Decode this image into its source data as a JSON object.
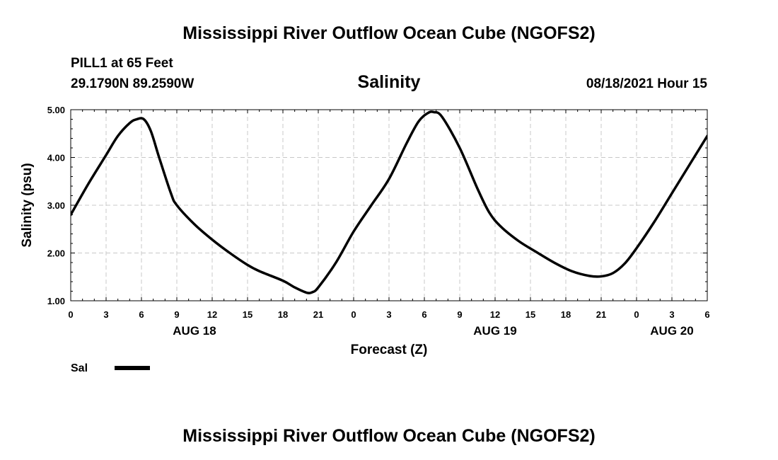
{
  "header": {
    "title": "Mississippi River Outflow Ocean Cube (NGOFS2)",
    "station": "PILL1 at 65 Feet",
    "coords": "29.1790N  89.2590W",
    "variable": "Salinity",
    "run": "08/18/2021 Hour 15"
  },
  "footer": {
    "title": "Mississippi River Outflow Ocean Cube (NGOFS2)"
  },
  "chart_data": {
    "type": "line",
    "ylabel": "Salinity (psu)",
    "xlabel": "Forecast (Z)",
    "ylim": [
      1.0,
      5.0
    ],
    "yticks": [
      1.0,
      2.0,
      3.0,
      4.0,
      5.0
    ],
    "ytick_labels": [
      "1.00",
      "2.00",
      "3.00",
      "4.00",
      "5.00"
    ],
    "xlim": [
      0,
      54
    ],
    "xticks": [
      0,
      3,
      6,
      9,
      12,
      15,
      18,
      21,
      24,
      27,
      30,
      33,
      36,
      39,
      42,
      45,
      48,
      51,
      54
    ],
    "xtick_labels": [
      "0",
      "3",
      "6",
      "9",
      "12",
      "15",
      "18",
      "21",
      "0",
      "3",
      "6",
      "9",
      "12",
      "15",
      "18",
      "21",
      "0",
      "3",
      "6"
    ],
    "date_labels": [
      {
        "label": "AUG 18",
        "x": 10.5
      },
      {
        "label": "AUG 19",
        "x": 36
      },
      {
        "label": "AUG 20",
        "x": 51
      }
    ],
    "grid": true,
    "legend": {
      "position": "bottom-left",
      "entries": [
        {
          "label": "Sal",
          "color": "#000000"
        }
      ]
    },
    "series": [
      {
        "name": "Sal",
        "color": "#000000",
        "x": [
          0,
          1.5,
          3,
          4,
          5,
          5.6,
          6.2,
          6.8,
          7.5,
          8.5,
          9,
          10.5,
          12,
          13.5,
          15,
          16,
          18,
          19,
          20,
          20.5,
          21,
          22.5,
          24,
          25.5,
          27,
          28.5,
          29.5,
          30.3,
          30.8,
          31.5,
          33,
          34.5,
          35.5,
          36.5,
          38,
          39.5,
          41,
          42.5,
          44,
          45,
          46,
          47,
          48,
          49.5,
          51,
          52.5,
          54
        ],
        "y": [
          2.8,
          3.45,
          4.05,
          4.45,
          4.72,
          4.8,
          4.8,
          4.55,
          4.0,
          3.25,
          3.0,
          2.6,
          2.28,
          2.0,
          1.75,
          1.62,
          1.42,
          1.28,
          1.17,
          1.18,
          1.28,
          1.8,
          2.45,
          3.0,
          3.55,
          4.3,
          4.75,
          4.93,
          4.95,
          4.85,
          4.2,
          3.35,
          2.85,
          2.55,
          2.25,
          2.02,
          1.8,
          1.62,
          1.52,
          1.51,
          1.58,
          1.78,
          2.1,
          2.65,
          3.25,
          3.85,
          4.45
        ]
      }
    ]
  }
}
